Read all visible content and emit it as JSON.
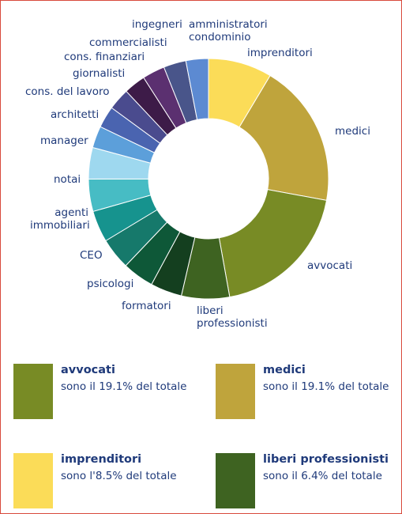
{
  "chart_data": {
    "type": "pie",
    "title": "",
    "categories": [
      "imprenditori",
      "medici",
      "avvocati",
      "liberi professionisti",
      "formatori",
      "psicologi",
      "CEO",
      "agenti immobiliari",
      "notai",
      "manager",
      "architetti",
      "cons. del lavoro",
      "giornalisti",
      "cons. finanziari",
      "commercialisti",
      "ingegneri",
      "amministratori condominio"
    ],
    "values": [
      8.5,
      19.1,
      19.1,
      6.4,
      4.2,
      4.2,
      4.2,
      4.2,
      4.3,
      4.2,
      2.9,
      2.9,
      2.9,
      2.9,
      3.0,
      3.0,
      3.0
    ],
    "colors": [
      "#fbdc58",
      "#bfa43c",
      "#788b25",
      "#3e6321",
      "#143f1f",
      "#0e5838",
      "#16796b",
      "#16938e",
      "#47bcc4",
      "#9ed8ef",
      "#5c9fda",
      "#4a64b0",
      "#4a4b8e",
      "#3d1b48",
      "#5b3070",
      "#49558a",
      "#5c8ad2"
    ],
    "center_gap": "white"
  },
  "labels": {
    "imprenditori": "imprenditori",
    "medici": "medici",
    "avvocati": "avvocati",
    "liberi_line1": "liberi",
    "liberi_line2": "professionisti",
    "formatori": "formatori",
    "psicologi": "psicologi",
    "ceo": "CEO",
    "agenti_line1": "agenti",
    "agenti_line2": "immobiliari",
    "notai": "notai",
    "manager": "manager",
    "architetti": "architetti",
    "cons_lavoro": "cons. del lavoro",
    "giornalisti": "giornalisti",
    "cons_finanziari": "cons. finanziari",
    "commercialisti": "commercialisti",
    "ingegneri": "ingegneri",
    "amministratori_line1": "amministratori",
    "amministratori_line2": "condominio"
  },
  "legend": [
    {
      "title": "avvocati",
      "desc": "sono il 19.1% del totale",
      "color": "#788b25"
    },
    {
      "title": "medici",
      "desc": "sono il 19.1% del totale",
      "color": "#bfa43c"
    },
    {
      "title": "imprenditori",
      "desc": "sono l'8.5% del totale",
      "color": "#fbdc58"
    },
    {
      "title": "liberi professionisti",
      "desc": "sono il 6.4% del totale",
      "color": "#3e6321"
    }
  ]
}
